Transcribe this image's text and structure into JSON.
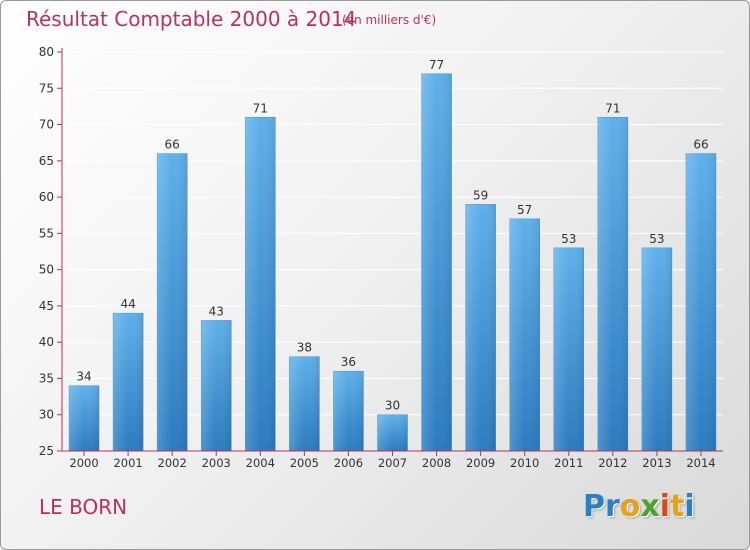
{
  "header": {
    "title": "Résultat Comptable 2000 à 2014",
    "subtitle": "(en milliers d'€)"
  },
  "footer": {
    "commune": "LE BORN",
    "brand_letters": [
      {
        "char": "P",
        "color": "#2c7fc1"
      },
      {
        "char": "r",
        "color": "#2c7fc1"
      },
      {
        "char": "o",
        "color": "#e2a21a"
      },
      {
        "char": "x",
        "color": "#4aa32e"
      },
      {
        "char": "i",
        "color": "#d64a1e"
      },
      {
        "char": "t",
        "color": "#e2a21a"
      },
      {
        "char": "i",
        "color": "#2c7fc1"
      }
    ]
  },
  "colors": {
    "title": "#b8315c",
    "bar_top": "#5fb0ea",
    "bar_bottom": "#2b7bbf",
    "axis": "#b8315c",
    "grid": "#ffffff",
    "label": "#333333"
  },
  "chart_data": {
    "type": "bar",
    "title": "Résultat Comptable 2000 à 2014",
    "subtitle": "(en milliers d'€)",
    "xlabel": "",
    "ylabel": "",
    "ylim": [
      25,
      80
    ],
    "yticks": [
      25,
      30,
      35,
      40,
      45,
      50,
      55,
      60,
      65,
      70,
      75,
      80
    ],
    "grid": true,
    "categories": [
      "2000",
      "2001",
      "2002",
      "2003",
      "2004",
      "2005",
      "2006",
      "2007",
      "2008",
      "2009",
      "2010",
      "2011",
      "2012",
      "2013",
      "2014"
    ],
    "values": [
      34,
      44,
      66,
      43,
      71,
      38,
      36,
      30,
      77,
      59,
      57,
      53,
      71,
      53,
      66
    ]
  }
}
